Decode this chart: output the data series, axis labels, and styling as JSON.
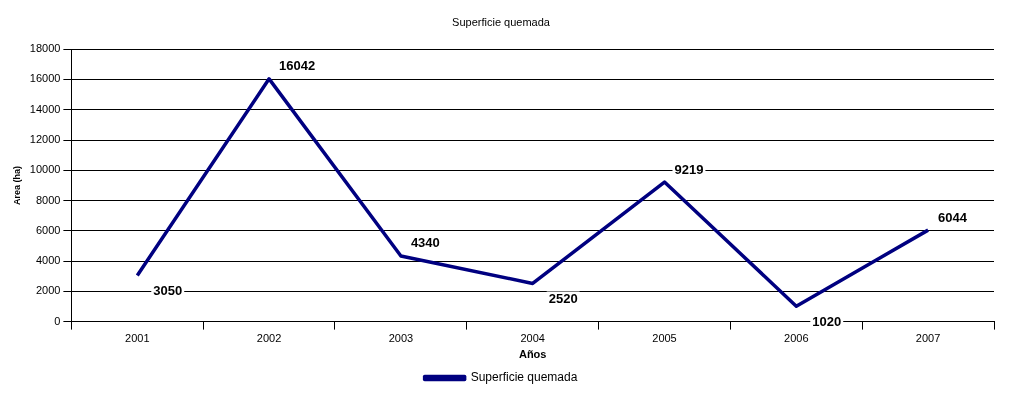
{
  "chart_data": {
    "type": "line",
    "title": "Superficie quemada",
    "xlabel": "Años",
    "ylabel": "Area (ha)",
    "categories": [
      "2001",
      "2002",
      "2003",
      "2004",
      "2005",
      "2006",
      "2007"
    ],
    "series": [
      {
        "name": "Superficie quemada",
        "color": "#000080",
        "values": [
          3050,
          16042,
          4340,
          2520,
          9219,
          1020,
          6044
        ]
      }
    ],
    "ylim": [
      0,
      18000
    ],
    "yticks": [
      0,
      2000,
      4000,
      6000,
      8000,
      10000,
      12000,
      14000,
      16000,
      18000
    ],
    "grid": "y",
    "legend": "bottom",
    "marker": "none",
    "data_labels": true
  }
}
